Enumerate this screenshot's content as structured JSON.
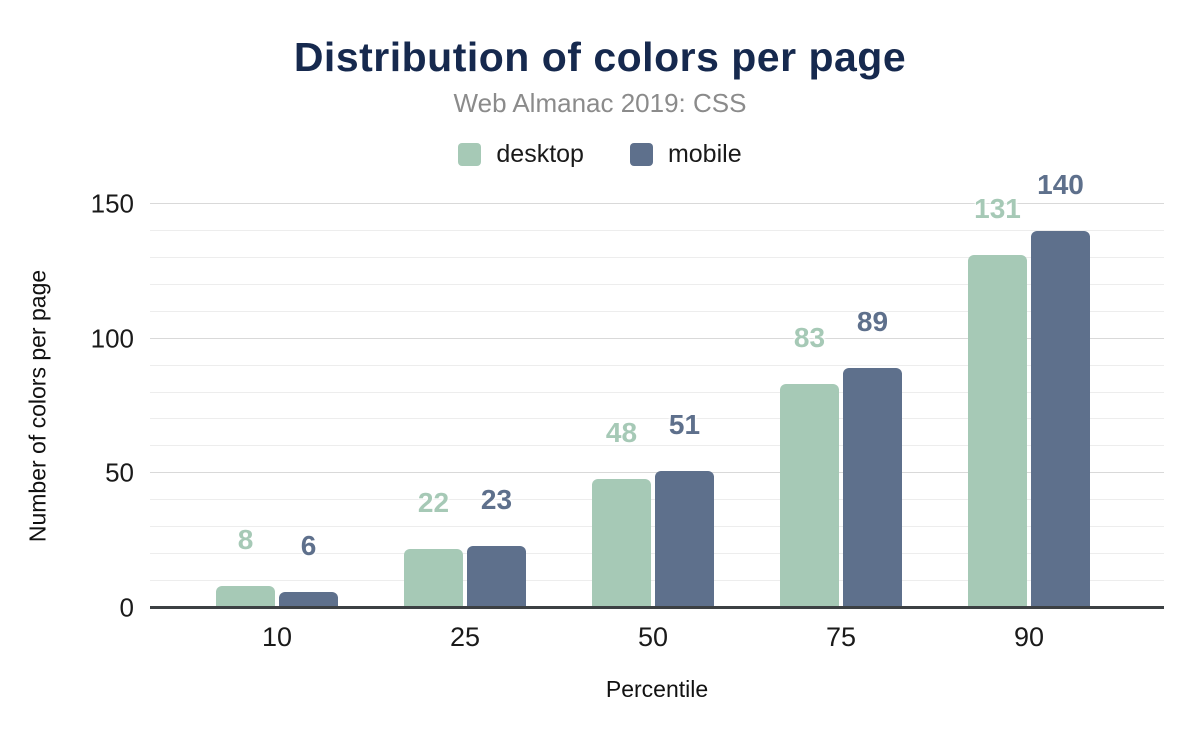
{
  "header": {
    "title": "Distribution of colors per page",
    "subtitle": "Web Almanac 2019: CSS"
  },
  "chart_data": {
    "type": "bar",
    "title": "Distribution of colors per page",
    "subtitle": "Web Almanac 2019: CSS",
    "categories": [
      "10",
      "25",
      "50",
      "75",
      "90"
    ],
    "series": [
      {
        "name": "desktop",
        "color": "#a6c9b6",
        "values": [
          8,
          22,
          48,
          83,
          131
        ]
      },
      {
        "name": "mobile",
        "color": "#5e708c",
        "values": [
          6,
          23,
          51,
          89,
          140
        ]
      }
    ],
    "xlabel": "Percentile",
    "ylabel": "Number of colors per page",
    "ylim": [
      0,
      150
    ],
    "yticks": [
      0,
      50,
      100,
      150
    ],
    "grid_step": 10,
    "grid": "on",
    "legend_position": "top",
    "data_labels": "on"
  },
  "colors": {
    "title": "#16294e",
    "subtitle": "#8b8b8b",
    "axis_text": "#1a1a1a",
    "grid_minor": "#ededed",
    "grid_major": "#d9d9d9",
    "baseline": "#3c4043",
    "background": "#ffffff",
    "desktop": "#a6c9b6",
    "mobile": "#5e708c"
  }
}
